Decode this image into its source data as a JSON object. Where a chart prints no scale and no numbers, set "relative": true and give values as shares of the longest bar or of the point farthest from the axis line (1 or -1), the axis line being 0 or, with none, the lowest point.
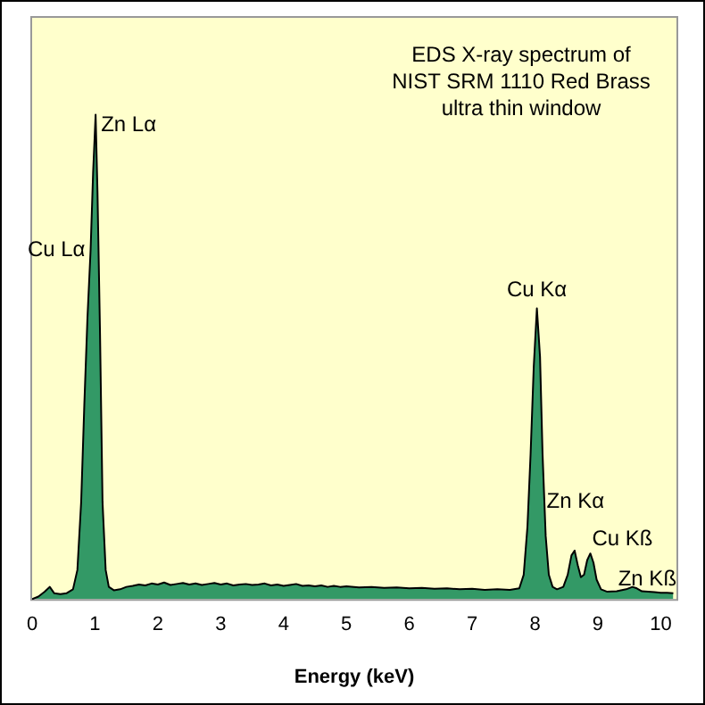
{
  "chart_data": {
    "type": "area",
    "title": "EDS X-ray spectrum of\nNIST SRM 1110 Red Brass\nultra thin window",
    "xlabel": "Energy (keV)",
    "relative": true,
    "xlim": [
      0,
      10.25
    ],
    "xticks": [
      0,
      1,
      2,
      3,
      4,
      5,
      6,
      7,
      8,
      9,
      10
    ],
    "grid": false,
    "legend": false,
    "x": [
      0,
      0.1,
      0.2,
      0.28,
      0.35,
      0.45,
      0.55,
      0.65,
      0.72,
      0.78,
      0.83,
      0.88,
      0.93,
      0.97,
      1.01,
      1.04,
      1.08,
      1.12,
      1.17,
      1.22,
      1.3,
      1.4,
      1.5,
      1.6,
      1.7,
      1.8,
      1.9,
      2.0,
      2.1,
      2.2,
      2.3,
      2.4,
      2.5,
      2.6,
      2.7,
      2.8,
      2.9,
      3.0,
      3.1,
      3.2,
      3.3,
      3.4,
      3.5,
      3.6,
      3.7,
      3.8,
      3.9,
      4.0,
      4.1,
      4.2,
      4.3,
      4.4,
      4.5,
      4.6,
      4.7,
      4.8,
      4.9,
      5.0,
      5.2,
      5.4,
      5.6,
      5.8,
      6.0,
      6.2,
      6.4,
      6.6,
      6.8,
      7.0,
      7.2,
      7.4,
      7.6,
      7.75,
      7.82,
      7.88,
      7.93,
      7.98,
      8.03,
      8.08,
      8.12,
      8.17,
      8.22,
      8.28,
      8.35,
      8.45,
      8.52,
      8.58,
      8.63,
      8.68,
      8.73,
      8.78,
      8.83,
      8.88,
      8.93,
      8.98,
      9.05,
      9.15,
      9.3,
      9.45,
      9.55,
      9.62,
      9.7,
      9.8,
      9.9,
      10.0,
      10.1,
      10.2
    ],
    "series": [
      {
        "color": "#339966",
        "values": [
          0,
          0.005,
          0.015,
          0.025,
          0.012,
          0.01,
          0.012,
          0.02,
          0.06,
          0.2,
          0.4,
          0.58,
          0.72,
          0.88,
          1.0,
          0.84,
          0.55,
          0.2,
          0.06,
          0.025,
          0.018,
          0.02,
          0.025,
          0.027,
          0.03,
          0.028,
          0.032,
          0.03,
          0.034,
          0.029,
          0.031,
          0.033,
          0.03,
          0.032,
          0.029,
          0.031,
          0.033,
          0.03,
          0.032,
          0.028,
          0.03,
          0.031,
          0.029,
          0.03,
          0.032,
          0.028,
          0.03,
          0.027,
          0.029,
          0.031,
          0.027,
          0.028,
          0.026,
          0.028,
          0.025,
          0.027,
          0.025,
          0.026,
          0.024,
          0.025,
          0.023,
          0.024,
          0.022,
          0.023,
          0.021,
          0.022,
          0.02,
          0.021,
          0.019,
          0.02,
          0.019,
          0.022,
          0.05,
          0.15,
          0.3,
          0.48,
          0.6,
          0.5,
          0.3,
          0.13,
          0.05,
          0.025,
          0.02,
          0.025,
          0.05,
          0.09,
          0.1,
          0.07,
          0.045,
          0.05,
          0.08,
          0.094,
          0.075,
          0.04,
          0.02,
          0.015,
          0.016,
          0.02,
          0.025,
          0.022,
          0.016,
          0.015,
          0.014,
          0.013,
          0.013,
          0.012
        ]
      }
    ],
    "annotations": [
      {
        "text": "Zn Lα",
        "x": 1.01,
        "y": 1.0
      },
      {
        "text": "Cu Lα",
        "x": 0.93,
        "y": 0.72
      },
      {
        "text": "Cu Kα",
        "x": 8.03,
        "y": 0.6
      },
      {
        "text": "Zn Kα",
        "x": 8.1,
        "y": 0.2
      },
      {
        "text": "Cu Kß",
        "x": 8.88,
        "y": 0.094
      },
      {
        "text": "Zn Kß",
        "x": 9.55,
        "y": 0.025
      }
    ]
  }
}
